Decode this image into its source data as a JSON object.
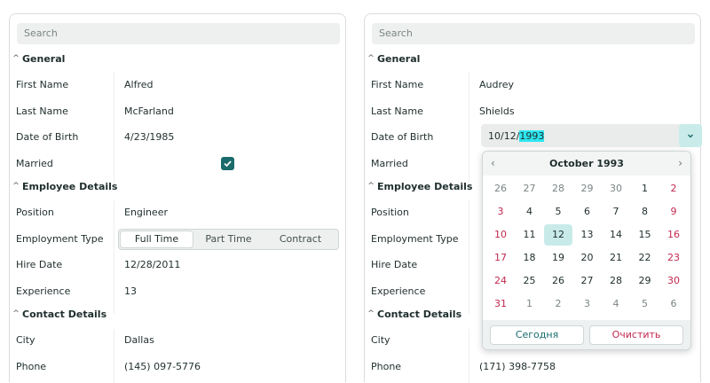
{
  "left": {
    "search_placeholder": "Search",
    "groups": [
      {
        "title": "General"
      },
      {
        "title": "Employee Details"
      },
      {
        "title": "Contact Details"
      }
    ],
    "fields": {
      "first_name": {
        "label": "First Name",
        "value": "Alfred"
      },
      "last_name": {
        "label": "Last Name",
        "value": "McFarland"
      },
      "dob": {
        "label": "Date of Birth",
        "value": "4/23/1985"
      },
      "married": {
        "label": "Married",
        "checked": true
      },
      "position": {
        "label": "Position",
        "value": "Engineer"
      },
      "employment_type": {
        "label": "Employment Type",
        "options": [
          "Full Time",
          "Part Time",
          "Contract"
        ],
        "selected": "Full Time"
      },
      "hire_date": {
        "label": "Hire Date",
        "value": "12/28/2011"
      },
      "experience": {
        "label": "Experience",
        "value": "13"
      },
      "city": {
        "label": "City",
        "value": "Dallas"
      },
      "phone": {
        "label": "Phone",
        "value": "(145) 097-5776"
      }
    }
  },
  "right": {
    "search_placeholder": "Search",
    "groups": [
      {
        "title": "General"
      },
      {
        "title": "Employee Details"
      },
      {
        "title": "Contact Details"
      }
    ],
    "fields": {
      "first_name": {
        "label": "First Name",
        "value": "Audrey"
      },
      "last_name": {
        "label": "Last Name",
        "value": "Shields"
      },
      "dob": {
        "label": "Date of Birth",
        "value_prefix": "10/12/",
        "value_selected": "1993"
      },
      "married": {
        "label": "Married"
      },
      "position": {
        "label": "Position"
      },
      "employment_type": {
        "label": "Employment Type"
      },
      "hire_date": {
        "label": "Hire Date"
      },
      "experience": {
        "label": "Experience"
      },
      "city": {
        "label": "City"
      },
      "phone": {
        "label": "Phone",
        "value": "(171) 398-7758"
      }
    }
  },
  "calendar": {
    "title": "October 1993",
    "prev_icon": "chevron-left-icon",
    "next_icon": "chevron-right-icon",
    "weeks": [
      [
        {
          "d": "26",
          "t": "other"
        },
        {
          "d": "27",
          "t": "other"
        },
        {
          "d": "28",
          "t": "other"
        },
        {
          "d": "29",
          "t": "other"
        },
        {
          "d": "30",
          "t": "other"
        },
        {
          "d": "1",
          "t": ""
        },
        {
          "d": "2",
          "t": "weekend"
        }
      ],
      [
        {
          "d": "3",
          "t": "weekend"
        },
        {
          "d": "4",
          "t": ""
        },
        {
          "d": "5",
          "t": ""
        },
        {
          "d": "6",
          "t": ""
        },
        {
          "d": "7",
          "t": ""
        },
        {
          "d": "8",
          "t": ""
        },
        {
          "d": "9",
          "t": "weekend"
        }
      ],
      [
        {
          "d": "10",
          "t": "weekend"
        },
        {
          "d": "11",
          "t": ""
        },
        {
          "d": "12",
          "t": "selected"
        },
        {
          "d": "13",
          "t": ""
        },
        {
          "d": "14",
          "t": ""
        },
        {
          "d": "15",
          "t": ""
        },
        {
          "d": "16",
          "t": "weekend"
        }
      ],
      [
        {
          "d": "17",
          "t": "weekend"
        },
        {
          "d": "18",
          "t": ""
        },
        {
          "d": "19",
          "t": ""
        },
        {
          "d": "20",
          "t": ""
        },
        {
          "d": "21",
          "t": ""
        },
        {
          "d": "22",
          "t": ""
        },
        {
          "d": "23",
          "t": "weekend"
        }
      ],
      [
        {
          "d": "24",
          "t": "weekend"
        },
        {
          "d": "25",
          "t": ""
        },
        {
          "d": "26",
          "t": ""
        },
        {
          "d": "27",
          "t": ""
        },
        {
          "d": "28",
          "t": ""
        },
        {
          "d": "29",
          "t": ""
        },
        {
          "d": "30",
          "t": "weekend"
        }
      ],
      [
        {
          "d": "31",
          "t": "weekend"
        },
        {
          "d": "1",
          "t": "other"
        },
        {
          "d": "2",
          "t": "other"
        },
        {
          "d": "3",
          "t": "other"
        },
        {
          "d": "4",
          "t": "other"
        },
        {
          "d": "5",
          "t": "other"
        },
        {
          "d": "6",
          "t": "other"
        }
      ]
    ],
    "today_label": "Сегодня",
    "clear_label": "Очистить"
  },
  "colors": {
    "accent": "#1a6b6b",
    "weekend": "#c2284f",
    "selection": "#2de6ef",
    "selected_day": "#c8ebea"
  }
}
